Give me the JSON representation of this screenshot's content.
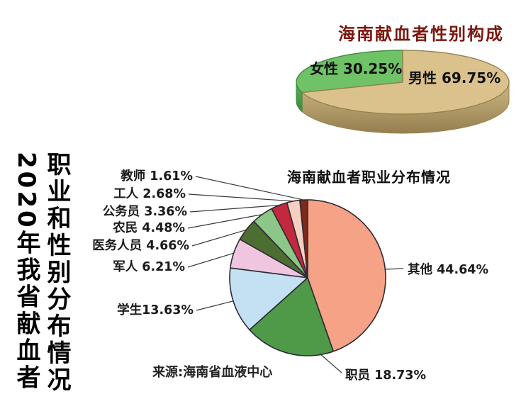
{
  "page": {
    "background": "#ffffff"
  },
  "headline": {
    "line1": "2020年我省献血者",
    "line2": "职业和性别分布情况"
  },
  "source_note": "来源:海南省血液中心",
  "chart_data": [
    {
      "id": "gender",
      "type": "pie",
      "style": "3d",
      "title": "海南献血者性别构成",
      "title_color": "#7A180F",
      "unit": "%",
      "start": "top",
      "direction": "counterclockwise",
      "categories": [
        "女性",
        "男性"
      ],
      "values": [
        30.25,
        69.75
      ],
      "slices": [
        {
          "id": "female",
          "label": "女性",
          "value": 30.25,
          "label_text": "女性 30.25%",
          "color": "#6FC266",
          "side_color_top": "#58B258",
          "side_color_bottom": "#3C8A3F",
          "stroke": "#3F8A3F"
        },
        {
          "id": "male",
          "label": "男性",
          "value": 69.75,
          "label_text": "男性 69.75%",
          "color": "#DBC28C",
          "side_color_top": "#CDB984",
          "side_color_bottom": "#967F4F",
          "stroke": "#96824F"
        }
      ],
      "labels_on_slices": true
    },
    {
      "id": "occupation",
      "type": "pie",
      "title": "海南献血者职业分布情况",
      "title_color": "#111111",
      "unit": "%",
      "start": "top",
      "direction": "counterclockwise",
      "leader_lines": true,
      "categories": [
        "教师",
        "工人",
        "公务员",
        "农民",
        "医务人员",
        "军人",
        "学生",
        "职员",
        "其他"
      ],
      "values": [
        1.61,
        2.68,
        3.36,
        4.48,
        4.66,
        6.21,
        13.63,
        18.73,
        44.64
      ],
      "slices": [
        {
          "id": "teacher",
          "label": "教师",
          "value": 1.61,
          "label_text": "教师 1.61%",
          "color": "#7C2A1C"
        },
        {
          "id": "worker",
          "label": "工人",
          "value": 2.68,
          "label_text": "工人 2.68%",
          "color": "#F7CFC0"
        },
        {
          "id": "civil-servant",
          "label": "公务员",
          "value": 3.36,
          "label_text": "公务员 3.36%",
          "color": "#C2293F"
        },
        {
          "id": "farmer",
          "label": "农民",
          "value": 4.48,
          "label_text": "农民 4.48%",
          "color": "#8CC788"
        },
        {
          "id": "medical-staff",
          "label": "医务人员",
          "value": 4.66,
          "label_text": "医务人员 4.66%",
          "color": "#4D6E33"
        },
        {
          "id": "military-personnel",
          "label": "军人",
          "value": 6.21,
          "label_text": "军人 6.21%",
          "color": "#EFC5DF"
        },
        {
          "id": "student",
          "label": "学生",
          "value": 13.63,
          "label_text": "学生13.63%",
          "color": "#C3E1F2"
        },
        {
          "id": "office-worker",
          "label": "职员",
          "value": 18.73,
          "label_text": "职员 18.73%",
          "color": "#4F9A48"
        },
        {
          "id": "other",
          "label": "其他",
          "value": 44.64,
          "label_text": "其他 44.64%",
          "color": "#F5A287"
        }
      ],
      "stroke_color": "#2E2A33",
      "leader_line_color": "#3A3A3A"
    }
  ]
}
